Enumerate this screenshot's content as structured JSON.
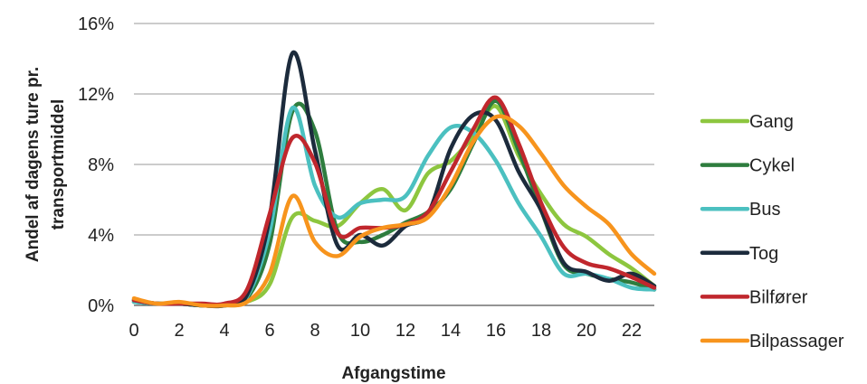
{
  "chart_data": {
    "type": "line",
    "xlabel": "Afgangstime",
    "ylabel_lines": [
      "Andel af dagens ture pr.",
      "transportmiddel"
    ],
    "xlim": [
      0,
      23
    ],
    "ylim": [
      0,
      16
    ],
    "x_ticks": [
      0,
      2,
      4,
      6,
      8,
      10,
      12,
      14,
      16,
      18,
      20,
      22
    ],
    "y_ticks": [
      0,
      4,
      8,
      12,
      16
    ],
    "y_tick_labels": [
      "0%",
      "4%",
      "8%",
      "12%",
      "16%"
    ],
    "grid": "horizontal",
    "legend_position": "right",
    "x": [
      0,
      1,
      2,
      3,
      4,
      5,
      6,
      7,
      8,
      9,
      10,
      11,
      12,
      13,
      14,
      15,
      16,
      17,
      18,
      19,
      20,
      21,
      22,
      23
    ],
    "series": [
      {
        "name": "Gang",
        "color": "#8dc63f",
        "values": [
          0.3,
          0.1,
          0.1,
          0.0,
          0.0,
          0.2,
          1.2,
          5.0,
          4.8,
          4.5,
          5.8,
          6.6,
          5.4,
          7.5,
          8.2,
          9.6,
          11.3,
          8.5,
          6.3,
          4.6,
          3.9,
          2.9,
          2.1,
          1.1
        ]
      },
      {
        "name": "Cykel",
        "color": "#2e7d3e",
        "values": [
          0.2,
          0.1,
          0.1,
          0.0,
          0.0,
          0.4,
          3.5,
          11.0,
          9.9,
          4.2,
          3.6,
          4.0,
          4.7,
          5.3,
          6.6,
          9.2,
          11.6,
          8.8,
          5.4,
          2.3,
          1.8,
          1.5,
          1.3,
          0.9
        ]
      },
      {
        "name": "Bus",
        "color": "#4bc0c0",
        "values": [
          0.2,
          0.1,
          0.1,
          0.0,
          0.0,
          0.5,
          4.2,
          11.2,
          6.8,
          5.0,
          5.8,
          6.0,
          6.2,
          8.5,
          10.1,
          9.8,
          8.2,
          5.8,
          3.9,
          1.8,
          1.8,
          1.5,
          1.0,
          0.9
        ]
      },
      {
        "name": "Tog",
        "color": "#1c2b3c",
        "values": [
          0.3,
          0.1,
          0.1,
          0.0,
          0.0,
          0.6,
          5.0,
          14.3,
          8.8,
          3.4,
          4.0,
          3.4,
          4.5,
          5.2,
          8.9,
          10.8,
          10.5,
          7.6,
          5.4,
          2.4,
          1.9,
          1.4,
          1.8,
          1.1
        ]
      },
      {
        "name": "Bilfører",
        "color": "#c0272d",
        "values": [
          0.3,
          0.1,
          0.1,
          0.1,
          0.1,
          0.9,
          5.2,
          9.5,
          8.1,
          4.1,
          4.4,
          4.4,
          4.6,
          5.3,
          7.6,
          10.0,
          11.8,
          9.2,
          5.8,
          3.3,
          2.4,
          2.1,
          1.6,
          1.0
        ]
      },
      {
        "name": "Bilpassager",
        "color": "#f7941d",
        "values": [
          0.4,
          0.1,
          0.2,
          0.0,
          0.0,
          0.2,
          1.8,
          6.2,
          3.6,
          2.8,
          3.9,
          4.4,
          4.6,
          5.0,
          6.8,
          9.3,
          10.7,
          10.2,
          8.6,
          6.8,
          5.6,
          4.6,
          2.9,
          1.8
        ]
      }
    ]
  }
}
